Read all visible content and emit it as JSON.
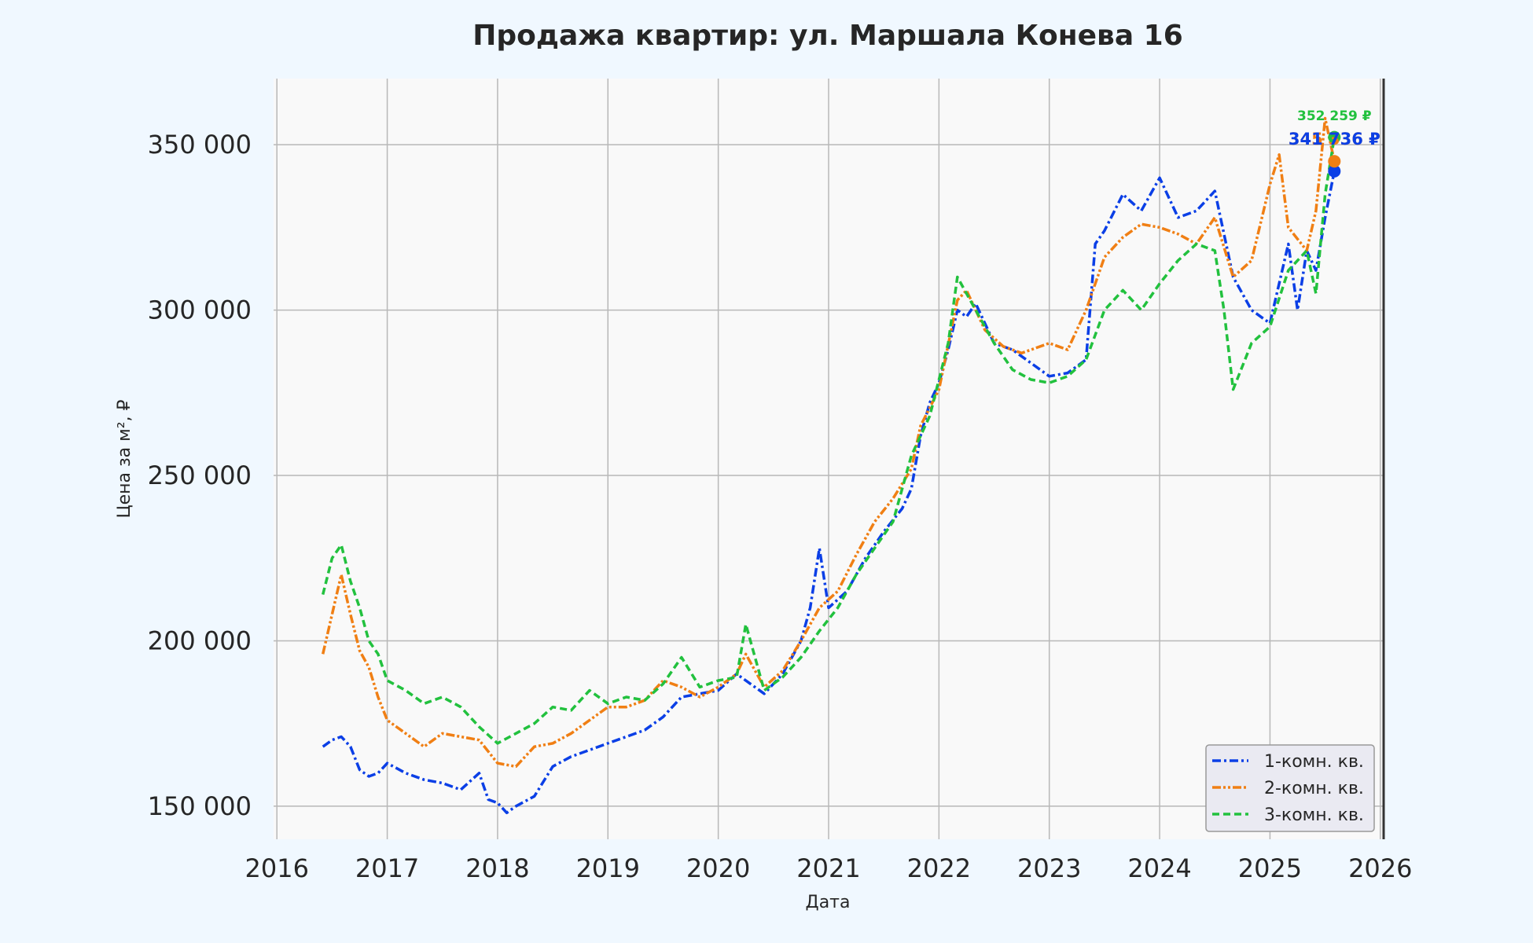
{
  "colors": {
    "page_bg": "#f0f8ff",
    "plot_bg": "#f9f9f9",
    "grid": "#b8b8b8",
    "text": "#262626",
    "series_1k": "#0b3fe6",
    "series_2k": "#f07f14",
    "series_3k": "#22c13e"
  },
  "chart_data": {
    "type": "line",
    "title": "Продажа квартир: ул. Маршала Конева 16",
    "xlabel": "Дата",
    "ylabel": "Цена за м², ₽",
    "xlim": [
      "2016-01-01",
      "2026-01-01"
    ],
    "ylim": [
      140000,
      370000
    ],
    "grid": true,
    "legend_position": "bottom-right",
    "x_ticks": [
      "2016",
      "2017",
      "2018",
      "2019",
      "2020",
      "2021",
      "2022",
      "2023",
      "2024",
      "2025",
      "2026"
    ],
    "y_ticks": [
      {
        "value": 150000,
        "label": "150 000"
      },
      {
        "value": 200000,
        "label": "200 000"
      },
      {
        "value": 250000,
        "label": "250 000"
      },
      {
        "value": 300000,
        "label": "300 000"
      },
      {
        "value": 350000,
        "label": "350 000"
      }
    ],
    "series": [
      {
        "name": "1-комн. кв.",
        "color": "#0b3fe6",
        "line_style": "dash-dot",
        "points": [
          [
            "2016-06",
            168000
          ],
          [
            "2016-07",
            170000
          ],
          [
            "2016-08",
            171000
          ],
          [
            "2016-09",
            168000
          ],
          [
            "2016-10",
            161000
          ],
          [
            "2016-11",
            159000
          ],
          [
            "2016-12",
            160000
          ],
          [
            "2017-01",
            163000
          ],
          [
            "2017-03",
            160000
          ],
          [
            "2017-05",
            158000
          ],
          [
            "2017-07",
            157000
          ],
          [
            "2017-09",
            155000
          ],
          [
            "2017-11",
            160000
          ],
          [
            "2017-12",
            152000
          ],
          [
            "2018-01",
            151000
          ],
          [
            "2018-02",
            148000
          ],
          [
            "2018-03",
            150000
          ],
          [
            "2018-05",
            153000
          ],
          [
            "2018-07",
            162000
          ],
          [
            "2018-09",
            165000
          ],
          [
            "2018-11",
            167000
          ],
          [
            "2019-01",
            169000
          ],
          [
            "2019-03",
            171000
          ],
          [
            "2019-05",
            173000
          ],
          [
            "2019-07",
            177000
          ],
          [
            "2019-09",
            183000
          ],
          [
            "2019-11",
            184000
          ],
          [
            "2020-01",
            185000
          ],
          [
            "2020-03",
            190000
          ],
          [
            "2020-05",
            186000
          ],
          [
            "2020-06",
            184000
          ],
          [
            "2020-08",
            190000
          ],
          [
            "2020-10",
            200000
          ],
          [
            "2020-11",
            210000
          ],
          [
            "2020-12",
            228000
          ],
          [
            "2021-01",
            210000
          ],
          [
            "2021-03",
            215000
          ],
          [
            "2021-05",
            225000
          ],
          [
            "2021-07",
            233000
          ],
          [
            "2021-09",
            240000
          ],
          [
            "2021-10",
            246000
          ],
          [
            "2021-11",
            262000
          ],
          [
            "2021-12",
            272000
          ],
          [
            "2022-01",
            278000
          ],
          [
            "2022-02",
            288000
          ],
          [
            "2022-03",
            300000
          ],
          [
            "2022-04",
            298000
          ],
          [
            "2022-05",
            302000
          ],
          [
            "2022-07",
            290000
          ],
          [
            "2022-09",
            288000
          ],
          [
            "2022-11",
            284000
          ],
          [
            "2023-01",
            280000
          ],
          [
            "2023-03",
            281000
          ],
          [
            "2023-05",
            285000
          ],
          [
            "2023-06",
            320000
          ],
          [
            "2023-07",
            324000
          ],
          [
            "2023-09",
            335000
          ],
          [
            "2023-11",
            330000
          ],
          [
            "2024-01",
            340000
          ],
          [
            "2024-03",
            328000
          ],
          [
            "2024-05",
            330000
          ],
          [
            "2024-07",
            336000
          ],
          [
            "2024-09",
            310000
          ],
          [
            "2024-11",
            300000
          ],
          [
            "2025-01",
            296000
          ],
          [
            "2025-03",
            320000
          ],
          [
            "2025-04",
            300000
          ],
          [
            "2025-05",
            318000
          ],
          [
            "2025-06",
            312000
          ],
          [
            "2025-07",
            328000
          ],
          [
            "2025-08",
            342000
          ]
        ],
        "end_value": 342000
      },
      {
        "name": "2-комн. кв.",
        "color": "#f07f14",
        "line_style": "dash-dot-dot",
        "points": [
          [
            "2016-06",
            196000
          ],
          [
            "2016-07",
            208000
          ],
          [
            "2016-08",
            220000
          ],
          [
            "2016-09",
            208000
          ],
          [
            "2016-10",
            197000
          ],
          [
            "2016-11",
            192000
          ],
          [
            "2016-12",
            183000
          ],
          [
            "2017-01",
            176000
          ],
          [
            "2017-03",
            172000
          ],
          [
            "2017-05",
            168000
          ],
          [
            "2017-07",
            172000
          ],
          [
            "2017-09",
            171000
          ],
          [
            "2017-11",
            170000
          ],
          [
            "2018-01",
            163000
          ],
          [
            "2018-03",
            162000
          ],
          [
            "2018-05",
            168000
          ],
          [
            "2018-07",
            169000
          ],
          [
            "2018-09",
            172000
          ],
          [
            "2018-11",
            176000
          ],
          [
            "2019-01",
            180000
          ],
          [
            "2019-03",
            180000
          ],
          [
            "2019-05",
            182000
          ],
          [
            "2019-07",
            188000
          ],
          [
            "2019-09",
            186000
          ],
          [
            "2019-11",
            183000
          ],
          [
            "2020-01",
            186000
          ],
          [
            "2020-03",
            190000
          ],
          [
            "2020-04",
            196000
          ],
          [
            "2020-06",
            186000
          ],
          [
            "2020-08",
            191000
          ],
          [
            "2020-10",
            200000
          ],
          [
            "2020-12",
            210000
          ],
          [
            "2021-02",
            215000
          ],
          [
            "2021-04",
            226000
          ],
          [
            "2021-06",
            236000
          ],
          [
            "2021-08",
            243000
          ],
          [
            "2021-10",
            252000
          ],
          [
            "2021-11",
            265000
          ],
          [
            "2022-01",
            276000
          ],
          [
            "2022-03",
            303000
          ],
          [
            "2022-04",
            306000
          ],
          [
            "2022-06",
            294000
          ],
          [
            "2022-08",
            289000
          ],
          [
            "2022-10",
            287000
          ],
          [
            "2023-01",
            290000
          ],
          [
            "2023-03",
            288000
          ],
          [
            "2023-05",
            300000
          ],
          [
            "2023-07",
            316000
          ],
          [
            "2023-09",
            322000
          ],
          [
            "2023-11",
            326000
          ],
          [
            "2024-01",
            325000
          ],
          [
            "2024-03",
            323000
          ],
          [
            "2024-05",
            320000
          ],
          [
            "2024-07",
            328000
          ],
          [
            "2024-09",
            310000
          ],
          [
            "2024-11",
            315000
          ],
          [
            "2025-01",
            338000
          ],
          [
            "2025-02",
            347000
          ],
          [
            "2025-03",
            325000
          ],
          [
            "2025-05",
            318000
          ],
          [
            "2025-06",
            330000
          ],
          [
            "2025-07",
            358000
          ],
          [
            "2025-08",
            345000
          ]
        ],
        "end_value": 345000
      },
      {
        "name": "3-комн. кв.",
        "color": "#22c13e",
        "line_style": "dashed",
        "points": [
          [
            "2016-06",
            214000
          ],
          [
            "2016-07",
            225000
          ],
          [
            "2016-08",
            229000
          ],
          [
            "2016-09",
            218000
          ],
          [
            "2016-10",
            210000
          ],
          [
            "2016-11",
            200000
          ],
          [
            "2016-12",
            196000
          ],
          [
            "2017-01",
            188000
          ],
          [
            "2017-03",
            185000
          ],
          [
            "2017-05",
            181000
          ],
          [
            "2017-07",
            183000
          ],
          [
            "2017-09",
            180000
          ],
          [
            "2017-11",
            174000
          ],
          [
            "2018-01",
            169000
          ],
          [
            "2018-03",
            172000
          ],
          [
            "2018-05",
            175000
          ],
          [
            "2018-07",
            180000
          ],
          [
            "2018-09",
            179000
          ],
          [
            "2018-11",
            185000
          ],
          [
            "2019-01",
            181000
          ],
          [
            "2019-03",
            183000
          ],
          [
            "2019-05",
            182000
          ],
          [
            "2019-07",
            187000
          ],
          [
            "2019-09",
            195000
          ],
          [
            "2019-11",
            186000
          ],
          [
            "2020-01",
            188000
          ],
          [
            "2020-03",
            189000
          ],
          [
            "2020-04",
            205000
          ],
          [
            "2020-06",
            185000
          ],
          [
            "2020-08",
            189000
          ],
          [
            "2020-10",
            195000
          ],
          [
            "2020-12",
            203000
          ],
          [
            "2021-02",
            210000
          ],
          [
            "2021-04",
            220000
          ],
          [
            "2021-06",
            228000
          ],
          [
            "2021-08",
            236000
          ],
          [
            "2021-10",
            256000
          ],
          [
            "2021-12",
            268000
          ],
          [
            "2022-02",
            290000
          ],
          [
            "2022-03",
            310000
          ],
          [
            "2022-05",
            300000
          ],
          [
            "2022-07",
            290000
          ],
          [
            "2022-09",
            282000
          ],
          [
            "2022-11",
            279000
          ],
          [
            "2023-01",
            278000
          ],
          [
            "2023-03",
            280000
          ],
          [
            "2023-05",
            285000
          ],
          [
            "2023-07",
            300000
          ],
          [
            "2023-09",
            306000
          ],
          [
            "2023-11",
            300000
          ],
          [
            "2024-01",
            308000
          ],
          [
            "2024-03",
            315000
          ],
          [
            "2024-05",
            320000
          ],
          [
            "2024-07",
            318000
          ],
          [
            "2024-08",
            300000
          ],
          [
            "2024-09",
            276000
          ],
          [
            "2024-11",
            290000
          ],
          [
            "2025-01",
            295000
          ],
          [
            "2025-03",
            312000
          ],
          [
            "2025-05",
            318000
          ],
          [
            "2025-06",
            305000
          ],
          [
            "2025-07",
            335000
          ],
          [
            "2025-08",
            352259
          ]
        ],
        "end_value": 352259
      }
    ],
    "end_labels": [
      {
        "text": "352 259 ₽",
        "color": "#22c13e",
        "value": 352259,
        "size": "small"
      },
      {
        "text": "345 336 ₽",
        "color": "#f07f14",
        "value": 345336,
        "size": "big"
      },
      {
        "text": "341 736 ₽",
        "color": "#0b3fe6",
        "value": 341736,
        "size": "big"
      }
    ]
  }
}
